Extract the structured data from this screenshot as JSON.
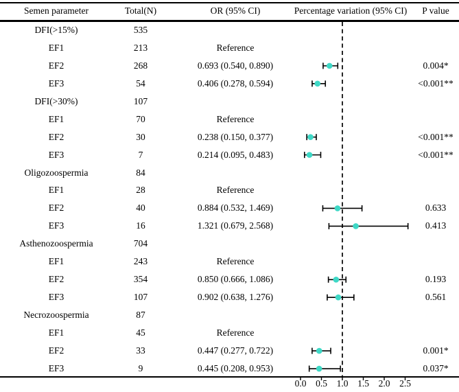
{
  "header": {
    "columns": [
      "Semen parameter",
      "Total(N)",
      "OR (95% CI)",
      "Percentage variation (95% CI)",
      "P value"
    ]
  },
  "axis": {
    "ticks": [
      "0.0",
      "0.5",
      "1.0",
      "1.5",
      "2.0",
      "2.5"
    ],
    "tick_values": [
      0.0,
      0.5,
      1.0,
      1.5,
      2.0,
      2.5
    ],
    "reference_line_value": 1.0
  },
  "style": {
    "marker_color": "#3ed8c6",
    "line_color": "#000000"
  },
  "rows": [
    {
      "param": "DFI(>15%)",
      "total": "535",
      "or_text": "",
      "p": ""
    },
    {
      "param": "EF1",
      "total": "213",
      "or_text": "Reference",
      "p": ""
    },
    {
      "param": "EF2",
      "total": "268",
      "or_text": "0.693 (0.540, 0.890)",
      "p": "0.004*",
      "or": 0.693,
      "lo": 0.54,
      "hi": 0.89
    },
    {
      "param": "EF3",
      "total": "54",
      "or_text": "0.406 (0.278, 0.594)",
      "p": "<0.001**",
      "or": 0.406,
      "lo": 0.278,
      "hi": 0.594
    },
    {
      "param": "DFI(>30%)",
      "total": "107",
      "or_text": "",
      "p": ""
    },
    {
      "param": "EF1",
      "total": "70",
      "or_text": "Reference",
      "p": ""
    },
    {
      "param": "EF2",
      "total": "30",
      "or_text": "0.238 (0.150, 0.377)",
      "p": "<0.001**",
      "or": 0.238,
      "lo": 0.15,
      "hi": 0.377
    },
    {
      "param": "EF3",
      "total": "7",
      "or_text": "0.214 (0.095, 0.483)",
      "p": "<0.001**",
      "or": 0.214,
      "lo": 0.095,
      "hi": 0.483
    },
    {
      "param": "Oligozoospermia",
      "total": "84",
      "or_text": "",
      "p": ""
    },
    {
      "param": "EF1",
      "total": "28",
      "or_text": "Reference",
      "p": ""
    },
    {
      "param": "EF2",
      "total": "40",
      "or_text": "0.884 (0.532, 1.469)",
      "p": "0.633",
      "or": 0.884,
      "lo": 0.532,
      "hi": 1.469
    },
    {
      "param": "EF3",
      "total": "16",
      "or_text": "1.321 (0.679, 2.568)",
      "p": "0.413",
      "or": 1.321,
      "lo": 0.679,
      "hi": 2.568
    },
    {
      "param": "Asthenozoospermia",
      "total": "704",
      "or_text": "",
      "p": ""
    },
    {
      "param": "EF1",
      "total": "243",
      "or_text": "Reference",
      "p": ""
    },
    {
      "param": "EF2",
      "total": "354",
      "or_text": "0.850 (0.666, 1.086)",
      "p": "0.193",
      "or": 0.85,
      "lo": 0.666,
      "hi": 1.086
    },
    {
      "param": "EF3",
      "total": "107",
      "or_text": "0.902 (0.638, 1.276)",
      "p": "0.561",
      "or": 0.902,
      "lo": 0.638,
      "hi": 1.276
    },
    {
      "param": "Necrozoospermia",
      "total": "87",
      "or_text": "",
      "p": ""
    },
    {
      "param": "EF1",
      "total": "45",
      "or_text": "Reference",
      "p": ""
    },
    {
      "param": "EF2",
      "total": "33",
      "or_text": "0.447 (0.277, 0.722)",
      "p": "0.001*",
      "or": 0.447,
      "lo": 0.277,
      "hi": 0.722
    },
    {
      "param": "EF3",
      "total": "9",
      "or_text": "0.445 (0.208, 0.953)",
      "p": "0.037*",
      "or": 0.445,
      "lo": 0.208,
      "hi": 0.953
    }
  ],
  "chart_data": {
    "type": "scatter",
    "subtype": "forest-plot",
    "title": "",
    "xlabel": "Percentage variation (95% CI)",
    "ylabel": "",
    "xlim": [
      0,
      2.5
    ],
    "x_ticks": [
      0.0,
      0.5,
      1.0,
      1.5,
      2.0,
      2.5
    ],
    "reference_line_x": 1.0,
    "grid": false,
    "legend": false,
    "points": [
      {
        "label": "DFI(>15%) EF2",
        "or": 0.693,
        "ci_low": 0.54,
        "ci_high": 0.89,
        "p": "0.004*"
      },
      {
        "label": "DFI(>15%) EF3",
        "or": 0.406,
        "ci_low": 0.278,
        "ci_high": 0.594,
        "p": "<0.001**"
      },
      {
        "label": "DFI(>30%) EF2",
        "or": 0.238,
        "ci_low": 0.15,
        "ci_high": 0.377,
        "p": "<0.001**"
      },
      {
        "label": "DFI(>30%) EF3",
        "or": 0.214,
        "ci_low": 0.095,
        "ci_high": 0.483,
        "p": "<0.001**"
      },
      {
        "label": "Oligozoospermia EF2",
        "or": 0.884,
        "ci_low": 0.532,
        "ci_high": 1.469,
        "p": "0.633"
      },
      {
        "label": "Oligozoospermia EF3",
        "or": 1.321,
        "ci_low": 0.679,
        "ci_high": 2.568,
        "p": "0.413"
      },
      {
        "label": "Asthenozoospermia EF2",
        "or": 0.85,
        "ci_low": 0.666,
        "ci_high": 1.086,
        "p": "0.193"
      },
      {
        "label": "Asthenozoospermia EF3",
        "or": 0.902,
        "ci_low": 0.638,
        "ci_high": 1.276,
        "p": "0.561"
      },
      {
        "label": "Necrozoospermia EF2",
        "or": 0.447,
        "ci_low": 0.277,
        "ci_high": 0.722,
        "p": "0.001*"
      },
      {
        "label": "Necrozoospermia EF3",
        "or": 0.445,
        "ci_low": 0.208,
        "ci_high": 0.953,
        "p": "0.037*"
      }
    ]
  }
}
